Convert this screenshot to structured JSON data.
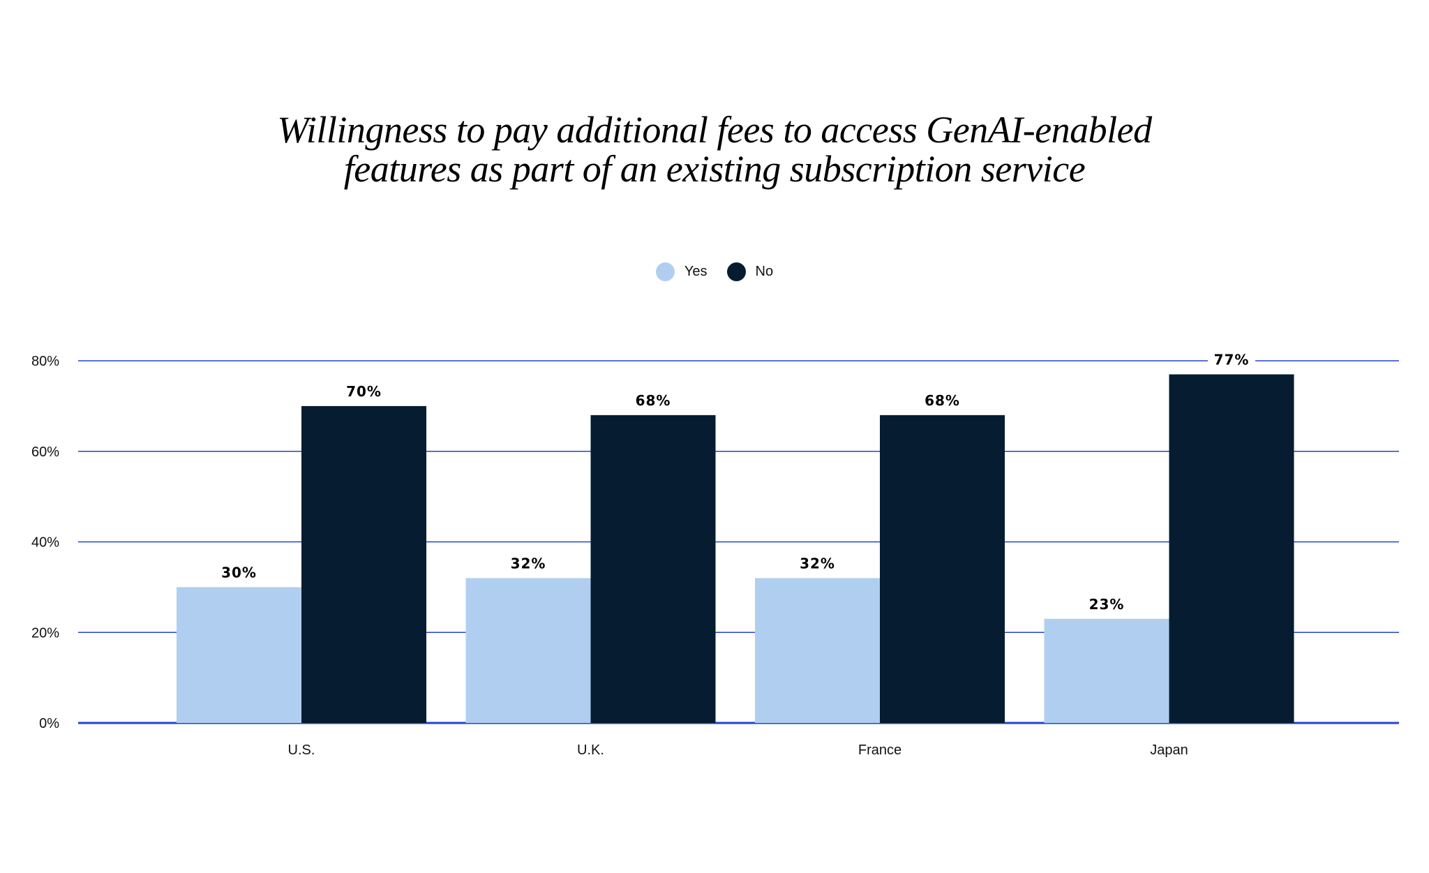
{
  "chart_data": {
    "type": "bar",
    "title": [
      "Willingness to pay additional fees to access GenAI-enabled",
      "features as part of an existing subscription service"
    ],
    "categories": [
      "U.S.",
      "U.K.",
      "France",
      "Japan"
    ],
    "series": [
      {
        "name": "Yes",
        "color": "#b0cff0",
        "values": [
          30,
          32,
          32,
          23
        ],
        "labels": [
          "30%",
          "32%",
          "32%",
          "23%"
        ]
      },
      {
        "name": "No",
        "color": "#061c30",
        "values": [
          70,
          68,
          68,
          77
        ],
        "labels": [
          "70%",
          "68%",
          "68%",
          "77%"
        ]
      }
    ],
    "yticks": [
      0,
      20,
      40,
      60,
      80
    ],
    "ytick_labels": [
      "0%",
      "20%",
      "40%",
      "60%",
      "80%"
    ],
    "ylim": [
      0,
      80
    ],
    "grid": true,
    "grid_color": "#2244cc",
    "legend_position": "top-center",
    "xlabel": "",
    "ylabel": ""
  }
}
